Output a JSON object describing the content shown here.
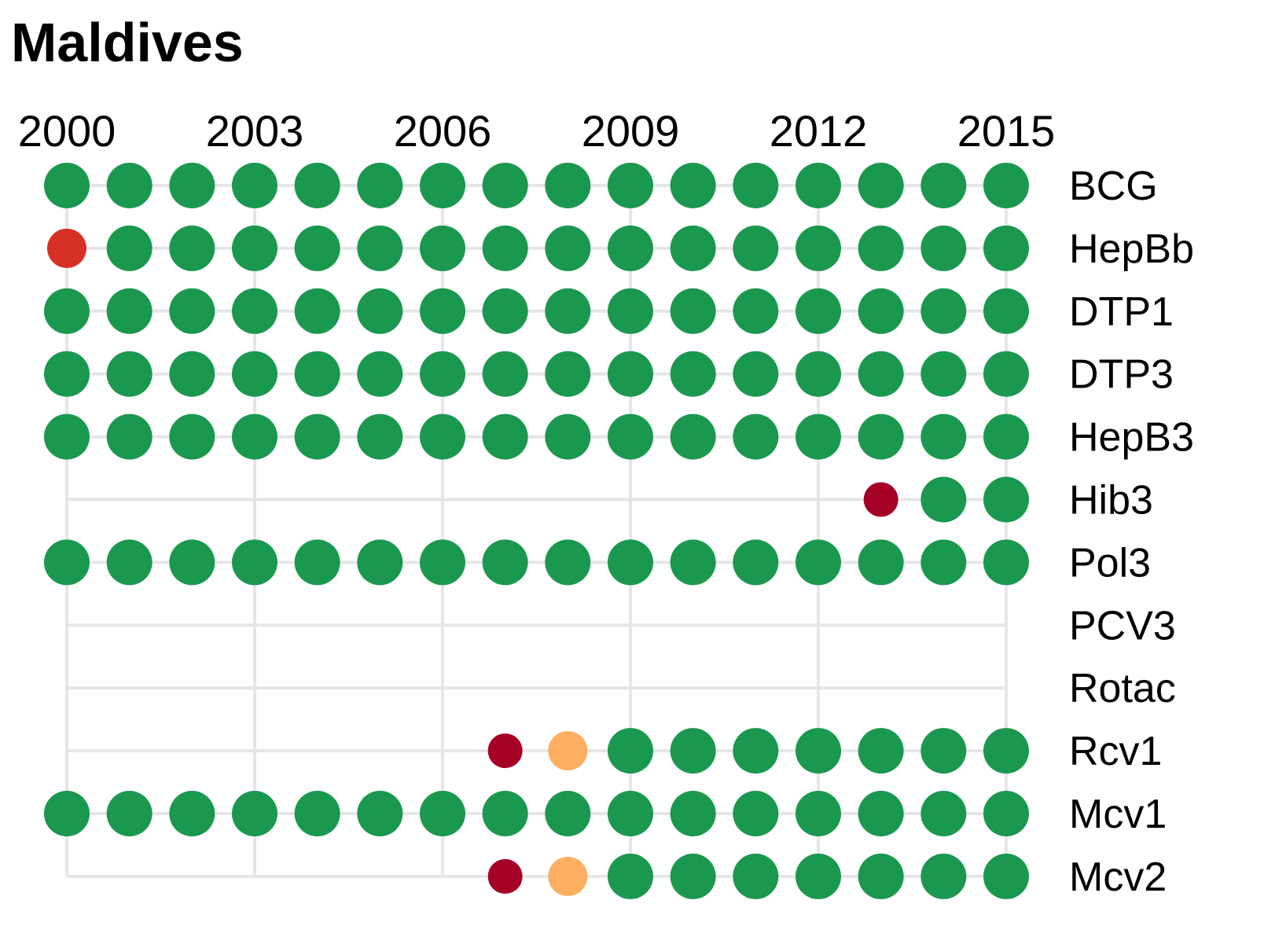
{
  "chart_data": {
    "type": "scatter",
    "title": "Maldives",
    "x_ticks": [
      "2000",
      "2003",
      "2006",
      "2009",
      "2012",
      "2015"
    ],
    "years": [
      2000,
      2001,
      2002,
      2003,
      2004,
      2005,
      2006,
      2007,
      2008,
      2009,
      2010,
      2011,
      2012,
      2013,
      2014,
      2015
    ],
    "colors": {
      "green": "#1b984f",
      "red": "#d73027",
      "darkred": "#a50026",
      "orange": "#fdae61"
    },
    "rows": [
      {
        "name": "BCG",
        "points": [
          [
            2000,
            "green"
          ],
          [
            2001,
            "green"
          ],
          [
            2002,
            "green"
          ],
          [
            2003,
            "green"
          ],
          [
            2004,
            "green"
          ],
          [
            2005,
            "green"
          ],
          [
            2006,
            "green"
          ],
          [
            2007,
            "green"
          ],
          [
            2008,
            "green"
          ],
          [
            2009,
            "green"
          ],
          [
            2010,
            "green"
          ],
          [
            2011,
            "green"
          ],
          [
            2012,
            "green"
          ],
          [
            2013,
            "green"
          ],
          [
            2014,
            "green"
          ],
          [
            2015,
            "green"
          ]
        ]
      },
      {
        "name": "HepBb",
        "points": [
          [
            2000,
            "red"
          ],
          [
            2001,
            "green"
          ],
          [
            2002,
            "green"
          ],
          [
            2003,
            "green"
          ],
          [
            2004,
            "green"
          ],
          [
            2005,
            "green"
          ],
          [
            2006,
            "green"
          ],
          [
            2007,
            "green"
          ],
          [
            2008,
            "green"
          ],
          [
            2009,
            "green"
          ],
          [
            2010,
            "green"
          ],
          [
            2011,
            "green"
          ],
          [
            2012,
            "green"
          ],
          [
            2013,
            "green"
          ],
          [
            2014,
            "green"
          ],
          [
            2015,
            "green"
          ]
        ]
      },
      {
        "name": "DTP1",
        "points": [
          [
            2000,
            "green"
          ],
          [
            2001,
            "green"
          ],
          [
            2002,
            "green"
          ],
          [
            2003,
            "green"
          ],
          [
            2004,
            "green"
          ],
          [
            2005,
            "green"
          ],
          [
            2006,
            "green"
          ],
          [
            2007,
            "green"
          ],
          [
            2008,
            "green"
          ],
          [
            2009,
            "green"
          ],
          [
            2010,
            "green"
          ],
          [
            2011,
            "green"
          ],
          [
            2012,
            "green"
          ],
          [
            2013,
            "green"
          ],
          [
            2014,
            "green"
          ],
          [
            2015,
            "green"
          ]
        ]
      },
      {
        "name": "DTP3",
        "points": [
          [
            2000,
            "green"
          ],
          [
            2001,
            "green"
          ],
          [
            2002,
            "green"
          ],
          [
            2003,
            "green"
          ],
          [
            2004,
            "green"
          ],
          [
            2005,
            "green"
          ],
          [
            2006,
            "green"
          ],
          [
            2007,
            "green"
          ],
          [
            2008,
            "green"
          ],
          [
            2009,
            "green"
          ],
          [
            2010,
            "green"
          ],
          [
            2011,
            "green"
          ],
          [
            2012,
            "green"
          ],
          [
            2013,
            "green"
          ],
          [
            2014,
            "green"
          ],
          [
            2015,
            "green"
          ]
        ]
      },
      {
        "name": "HepB3",
        "points": [
          [
            2000,
            "green"
          ],
          [
            2001,
            "green"
          ],
          [
            2002,
            "green"
          ],
          [
            2003,
            "green"
          ],
          [
            2004,
            "green"
          ],
          [
            2005,
            "green"
          ],
          [
            2006,
            "green"
          ],
          [
            2007,
            "green"
          ],
          [
            2008,
            "green"
          ],
          [
            2009,
            "green"
          ],
          [
            2010,
            "green"
          ],
          [
            2011,
            "green"
          ],
          [
            2012,
            "green"
          ],
          [
            2013,
            "green"
          ],
          [
            2014,
            "green"
          ],
          [
            2015,
            "green"
          ]
        ]
      },
      {
        "name": "Hib3",
        "points": [
          [
            2013,
            "darkred"
          ],
          [
            2014,
            "green"
          ],
          [
            2015,
            "green"
          ]
        ]
      },
      {
        "name": "Pol3",
        "points": [
          [
            2000,
            "green"
          ],
          [
            2001,
            "green"
          ],
          [
            2002,
            "green"
          ],
          [
            2003,
            "green"
          ],
          [
            2004,
            "green"
          ],
          [
            2005,
            "green"
          ],
          [
            2006,
            "green"
          ],
          [
            2007,
            "green"
          ],
          [
            2008,
            "green"
          ],
          [
            2009,
            "green"
          ],
          [
            2010,
            "green"
          ],
          [
            2011,
            "green"
          ],
          [
            2012,
            "green"
          ],
          [
            2013,
            "green"
          ],
          [
            2014,
            "green"
          ],
          [
            2015,
            "green"
          ]
        ]
      },
      {
        "name": "PCV3",
        "points": []
      },
      {
        "name": "Rotac",
        "points": []
      },
      {
        "name": "Rcv1",
        "points": [
          [
            2007,
            "darkred"
          ],
          [
            2008,
            "orange"
          ],
          [
            2009,
            "green"
          ],
          [
            2010,
            "green"
          ],
          [
            2011,
            "green"
          ],
          [
            2012,
            "green"
          ],
          [
            2013,
            "green"
          ],
          [
            2014,
            "green"
          ],
          [
            2015,
            "green"
          ]
        ]
      },
      {
        "name": "Mcv1",
        "points": [
          [
            2000,
            "green"
          ],
          [
            2001,
            "green"
          ],
          [
            2002,
            "green"
          ],
          [
            2003,
            "green"
          ],
          [
            2004,
            "green"
          ],
          [
            2005,
            "green"
          ],
          [
            2006,
            "green"
          ],
          [
            2007,
            "green"
          ],
          [
            2008,
            "green"
          ],
          [
            2009,
            "green"
          ],
          [
            2010,
            "green"
          ],
          [
            2011,
            "green"
          ],
          [
            2012,
            "green"
          ],
          [
            2013,
            "green"
          ],
          [
            2014,
            "green"
          ],
          [
            2015,
            "green"
          ]
        ]
      },
      {
        "name": "Mcv2",
        "points": [
          [
            2007,
            "darkred"
          ],
          [
            2008,
            "orange"
          ],
          [
            2009,
            "green"
          ],
          [
            2010,
            "green"
          ],
          [
            2011,
            "green"
          ],
          [
            2012,
            "green"
          ],
          [
            2013,
            "green"
          ],
          [
            2014,
            "green"
          ],
          [
            2015,
            "green"
          ]
        ]
      }
    ]
  }
}
